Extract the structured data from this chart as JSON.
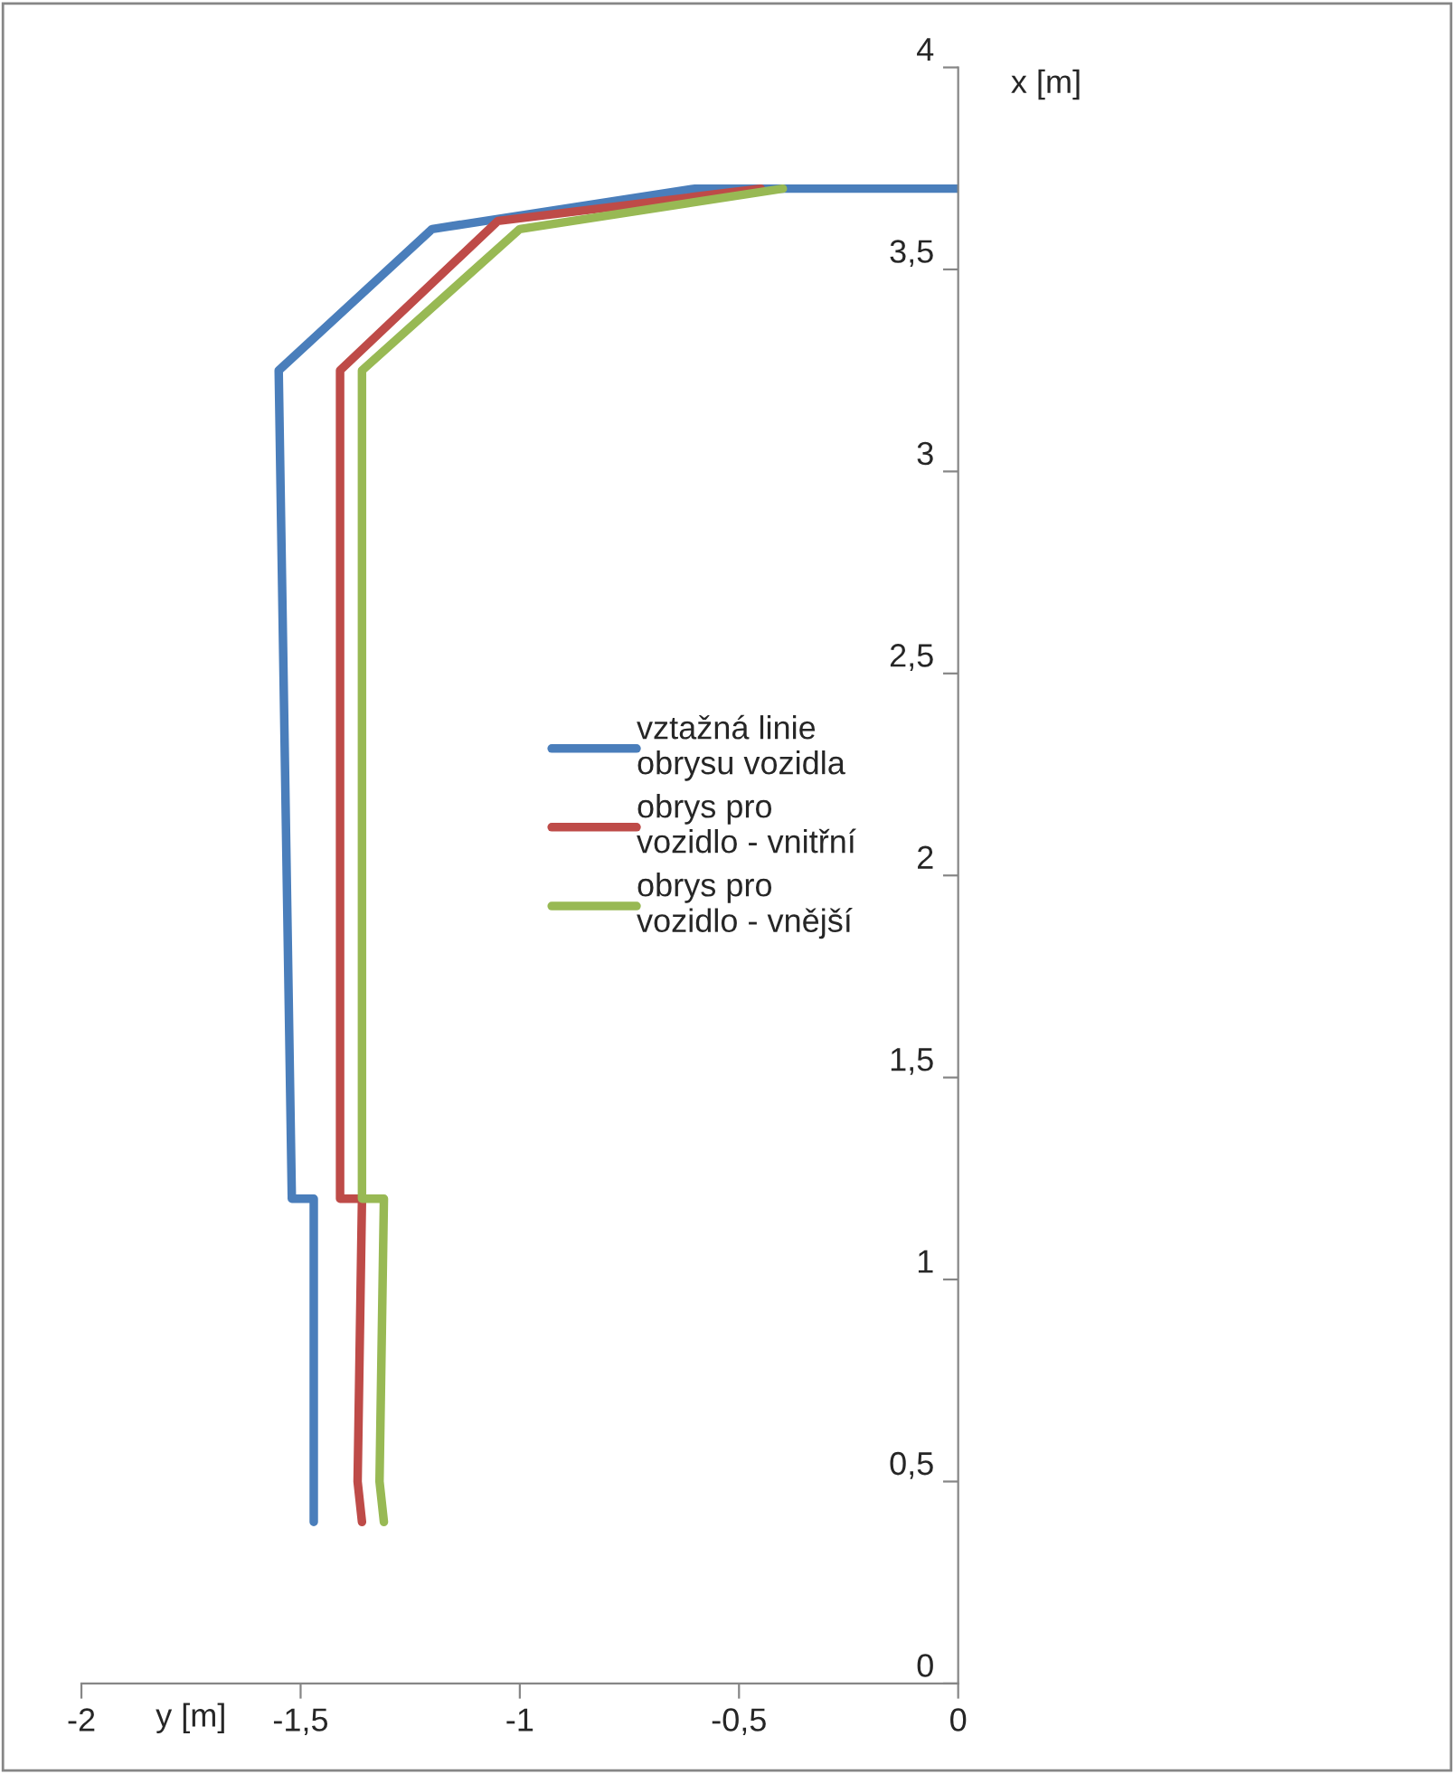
{
  "chart_data": {
    "type": "line",
    "xlabel": "y [m]",
    "ylabel": "x [m]",
    "series": [
      {
        "name": "vztažná linie\nobrysu vozidla",
        "color": "#4a7ebb",
        "x": [
          -1.47,
          -1.47,
          -1.52,
          -1.55,
          -1.2,
          -0.6,
          0
        ],
        "values": [
          0.4,
          1.2,
          1.2,
          3.25,
          3.6,
          3.7,
          3.7
        ]
      },
      {
        "name": "obrys pro\nvozidlo - vnitřní",
        "color": "#be4b48",
        "x": [
          -1.36,
          -1.37,
          -1.36,
          -1.41,
          -1.41,
          -1.05,
          -0.45
        ],
        "values": [
          0.4,
          0.5,
          1.2,
          1.2,
          3.25,
          3.62,
          3.7
        ]
      },
      {
        "name": "obrys pro\nvozidlo - vnější",
        "color": "#98b954",
        "x": [
          -1.31,
          -1.32,
          -1.31,
          -1.36,
          -1.36,
          -1.0,
          -0.4
        ],
        "values": [
          0.4,
          0.5,
          1.2,
          1.2,
          3.25,
          3.6,
          3.7
        ]
      }
    ],
    "xlim": [
      -2,
      0
    ],
    "xticks": [
      -2,
      {
        "value": -1.5,
        "label": "-1,5"
      },
      -1,
      {
        "value": -0.5,
        "label": "-0,5"
      },
      0
    ],
    "ylim": [
      0,
      4
    ],
    "yticks": [
      0,
      {
        "value": 0.5,
        "label": "0,5"
      },
      1,
      {
        "value": 1.5,
        "label": "1,5"
      },
      2,
      {
        "value": 2.5,
        "label": "2,5"
      },
      3,
      {
        "value": 3.5,
        "label": "3,5"
      },
      4
    ],
    "grid": false,
    "legend": "center",
    "marker": "none",
    "line_style": "solid"
  }
}
